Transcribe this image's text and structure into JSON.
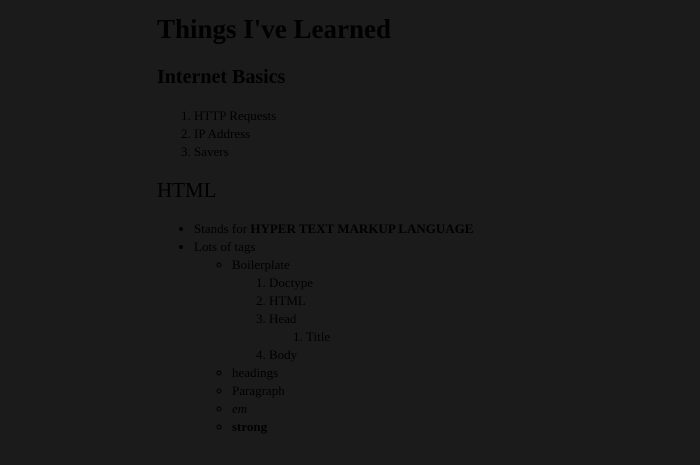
{
  "title": "Things I've Learned",
  "sections": {
    "basics": {
      "heading": "Internet Basics",
      "items": [
        "HTTP Requests",
        "IP Address",
        "Savers"
      ]
    },
    "html": {
      "heading": "HTML",
      "stands_for_prefix": "Stands for ",
      "stands_for_bold": "HYPER TEXT MARKUP LANGUAGE",
      "lots_of_tags": "Lots of tags",
      "tags": {
        "boilerplate": "Boilerplate",
        "boilerplate_items": [
          "Doctype",
          "HTML",
          "Head",
          "Body"
        ],
        "head_items": [
          "Title"
        ],
        "headings": "headings",
        "paragraph": "Paragraph",
        "em": "em",
        "strong": "strong"
      }
    }
  }
}
